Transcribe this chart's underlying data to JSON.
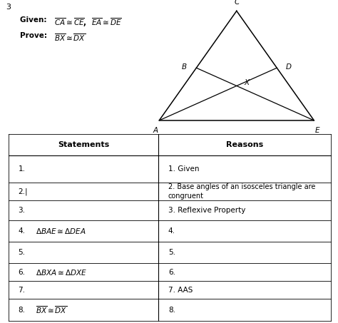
{
  "problem_number": "3",
  "bg_color": "#ffffff",
  "table_header": [
    "Statements",
    "Reasons"
  ],
  "rows": [
    {
      "stmt": "1.",
      "reason": "1. Given",
      "stmt_math": false,
      "reason_math": false
    },
    {
      "stmt": "2.|",
      "reason": "2. Base angles of an isosceles triangle are\ncongruent",
      "stmt_math": false,
      "reason_math": false
    },
    {
      "stmt": "3.",
      "reason": "3. Reflexive Property",
      "stmt_math": false,
      "reason_math": false
    },
    {
      "stmt": "4.",
      "stmt_suffix": "$\\Delta BAE  \\cong  \\Delta DEA$",
      "reason": "4.",
      "stmt_math": true,
      "reason_math": false
    },
    {
      "stmt": "5.",
      "reason": "5.",
      "stmt_math": false,
      "reason_math": false
    },
    {
      "stmt": "6.",
      "stmt_suffix": "$\\Delta BXA  \\cong  \\Delta DXE$",
      "reason": "6.",
      "stmt_math": true,
      "reason_math": false
    },
    {
      "stmt": "7.",
      "reason": "7. AAS",
      "stmt_math": false,
      "reason_math": false
    },
    {
      "stmt": "8.",
      "stmt_suffix": "$\\overline{BX}  \\cong  \\overline{DX}$",
      "reason": "8.",
      "stmt_math": true,
      "reason_math": false
    }
  ],
  "col_split": 0.465,
  "tri_C": [
    0.5,
    1.0
  ],
  "tri_A": [
    0.05,
    0.0
  ],
  "tri_E": [
    0.95,
    0.0
  ],
  "t_b": 0.52,
  "t_d": 0.52
}
